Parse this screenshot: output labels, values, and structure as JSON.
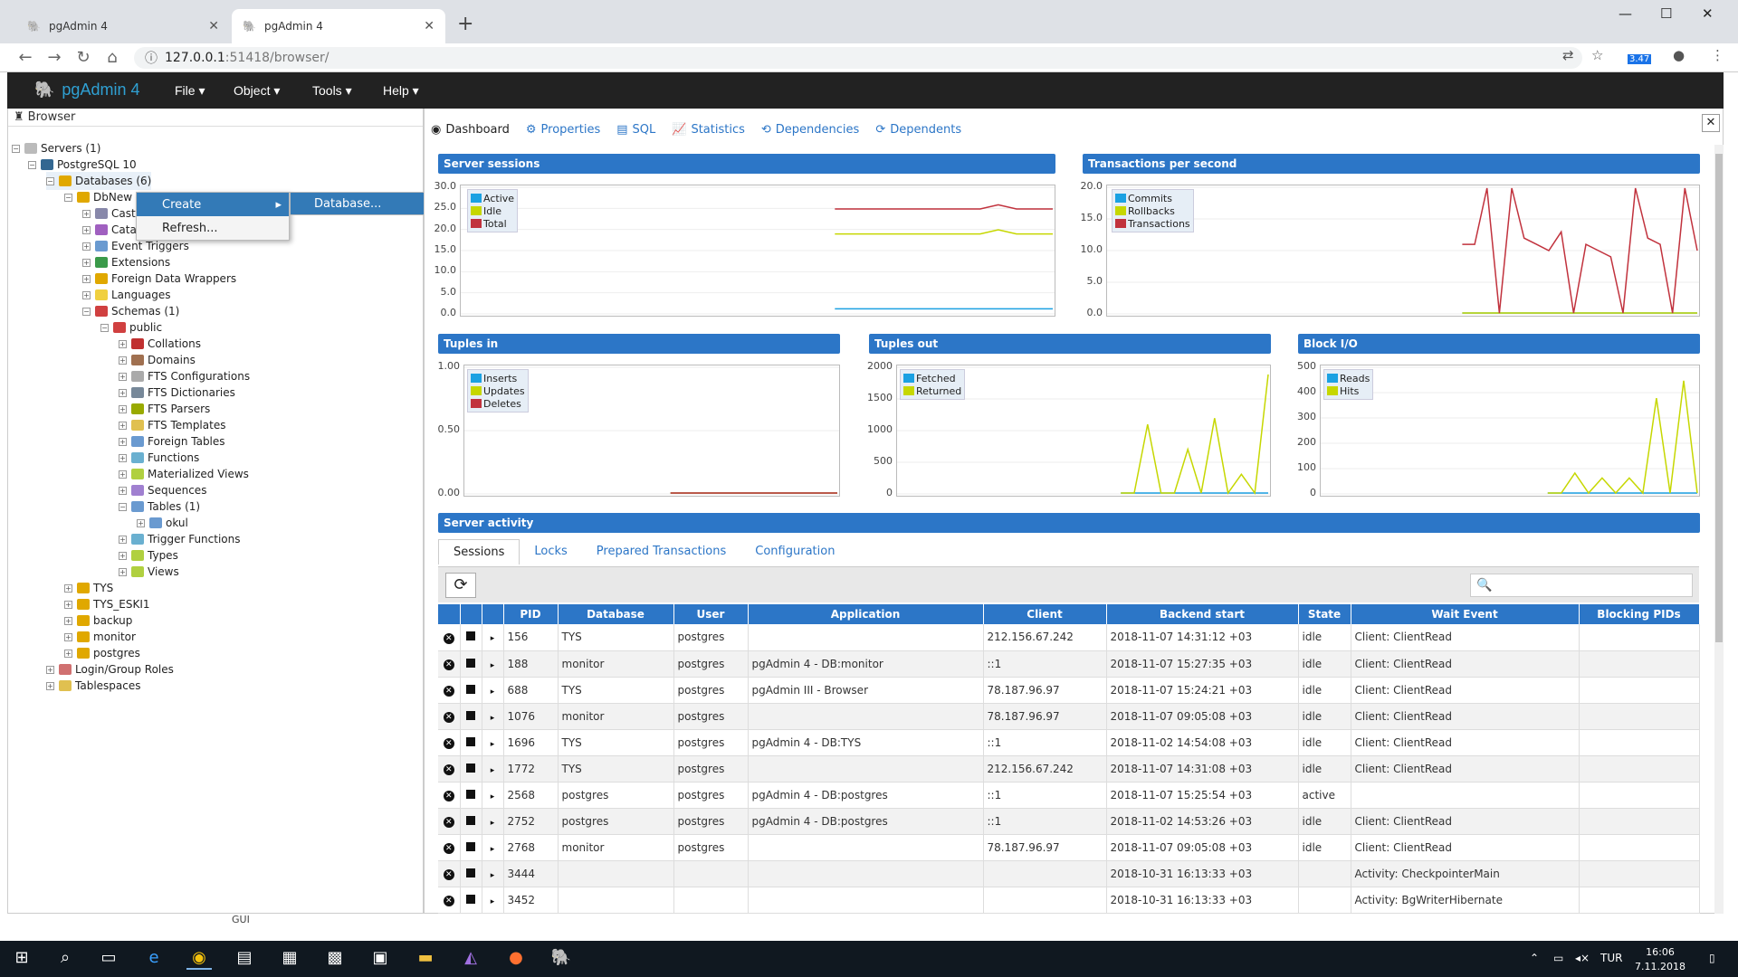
{
  "browser": {
    "tabs": [
      {
        "title": "pgAdmin 4",
        "favicon": "elephant-icon"
      },
      {
        "title": "pgAdmin 4",
        "favicon": "elephant-icon"
      }
    ],
    "url_host": "127.0.0.1",
    "url_rest": ":51418/browser/",
    "ext_badge": "3.47"
  },
  "app": {
    "brand": "pgAdmin 4",
    "menus": [
      "File",
      "Object",
      "Tools",
      "Help"
    ]
  },
  "browser_panel": {
    "title": "Browser",
    "tree": [
      {
        "label": "Servers (1)"
      },
      {
        "label": "PostgreSQL 10"
      },
      {
        "label": "Databases (6)"
      },
      {
        "label": "DbNew"
      },
      {
        "label": "Cast"
      },
      {
        "label": "Catalogs"
      },
      {
        "label": "Event Triggers"
      },
      {
        "label": "Extensions"
      },
      {
        "label": "Foreign Data Wrappers"
      },
      {
        "label": "Languages"
      },
      {
        "label": "Schemas (1)"
      },
      {
        "label": "public"
      },
      {
        "label": "Collations"
      },
      {
        "label": "Domains"
      },
      {
        "label": "FTS Configurations"
      },
      {
        "label": "FTS Dictionaries"
      },
      {
        "label": "FTS Parsers"
      },
      {
        "label": "FTS Templates"
      },
      {
        "label": "Foreign Tables"
      },
      {
        "label": "Functions"
      },
      {
        "label": "Materialized Views"
      },
      {
        "label": "Sequences"
      },
      {
        "label": "Tables (1)"
      },
      {
        "label": "okul"
      },
      {
        "label": "Trigger Functions"
      },
      {
        "label": "Types"
      },
      {
        "label": "Views"
      },
      {
        "label": "TYS"
      },
      {
        "label": "TYS_ESKI1"
      },
      {
        "label": "backup"
      },
      {
        "label": "monitor"
      },
      {
        "label": "postgres"
      },
      {
        "label": "Login/Group Roles"
      },
      {
        "label": "Tablespaces"
      }
    ]
  },
  "context_menu": {
    "create": "Create",
    "refresh": "Refresh...",
    "submenu_database": "Database..."
  },
  "right_tabs": [
    "Dashboard",
    "Properties",
    "SQL",
    "Statistics",
    "Dependencies",
    "Dependents"
  ],
  "charts": {
    "server_sessions": {
      "title": "Server sessions",
      "yticks": [
        "30.0",
        "25.0",
        "20.0",
        "15.0",
        "10.0",
        "5.0",
        "0.0"
      ],
      "legend": [
        "Active",
        "Idle",
        "Total"
      ]
    },
    "tps": {
      "title": "Transactions per second",
      "yticks": [
        "20.0",
        "15.0",
        "10.0",
        "5.0",
        "0.0"
      ],
      "legend": [
        "Commits",
        "Rollbacks",
        "Transactions"
      ]
    },
    "tuples_in": {
      "title": "Tuples in",
      "yticks": [
        "1.00",
        "0.50",
        "0.00"
      ],
      "legend": [
        "Inserts",
        "Updates",
        "Deletes"
      ]
    },
    "tuples_out": {
      "title": "Tuples out",
      "yticks": [
        "2000",
        "1500",
        "1000",
        "500",
        "0"
      ],
      "legend": [
        "Fetched",
        "Returned"
      ]
    },
    "block_io": {
      "title": "Block I/O",
      "yticks": [
        "500",
        "400",
        "300",
        "200",
        "100",
        "0"
      ],
      "legend": [
        "Reads",
        "Hits"
      ]
    }
  },
  "chart_data": [
    {
      "type": "line",
      "title": "Server sessions",
      "ylim": [
        0,
        30
      ],
      "series": [
        {
          "name": "Active",
          "values": [
            1,
            1,
            1,
            1,
            1,
            1,
            1,
            1,
            1,
            1,
            1,
            1,
            1
          ]
        },
        {
          "name": "Idle",
          "values": [
            19,
            19,
            19,
            19,
            19,
            19,
            19,
            19,
            19,
            20,
            19,
            19,
            19
          ]
        },
        {
          "name": "Total",
          "values": [
            25,
            25,
            25,
            25,
            25,
            25,
            25,
            25,
            25,
            26,
            25,
            25,
            25
          ]
        }
      ]
    },
    {
      "type": "line",
      "title": "Transactions per second",
      "ylim": [
        0,
        20
      ],
      "series": [
        {
          "name": "Commits",
          "values": [
            0,
            0,
            0,
            0,
            0,
            0,
            0,
            0,
            0,
            0,
            0,
            0,
            0,
            0,
            0,
            0,
            0,
            0,
            0,
            0
          ]
        },
        {
          "name": "Rollbacks",
          "values": [
            0,
            0,
            0,
            0,
            0,
            0,
            0,
            0,
            0,
            0,
            0,
            0,
            0,
            0,
            0,
            0,
            0,
            0,
            0,
            0
          ]
        },
        {
          "name": "Transactions",
          "values": [
            11,
            11,
            20,
            0,
            20,
            12,
            11,
            10,
            13,
            0,
            11,
            10,
            9,
            0,
            20,
            12,
            11,
            0,
            20,
            10
          ]
        }
      ]
    },
    {
      "type": "line",
      "title": "Tuples in",
      "ylim": [
        0,
        1
      ],
      "series": [
        {
          "name": "Inserts",
          "values": [
            0,
            0,
            0,
            0
          ]
        },
        {
          "name": "Updates",
          "values": [
            0,
            0,
            0,
            0
          ]
        },
        {
          "name": "Deletes",
          "values": [
            0,
            0,
            0,
            0
          ]
        }
      ]
    },
    {
      "type": "line",
      "title": "Tuples out",
      "ylim": [
        0,
        2000
      ],
      "series": [
        {
          "name": "Fetched",
          "values": [
            0,
            0,
            0,
            0,
            0,
            0,
            0,
            0,
            0,
            0,
            0,
            0
          ]
        },
        {
          "name": "Returned",
          "values": [
            0,
            0,
            1100,
            0,
            0,
            700,
            0,
            1200,
            0,
            300,
            0,
            1900
          ]
        }
      ]
    },
    {
      "type": "line",
      "title": "Block I/O",
      "ylim": [
        0,
        500
      ],
      "series": [
        {
          "name": "Reads",
          "values": [
            0,
            0,
            0,
            0,
            0,
            0,
            0,
            0,
            0,
            0,
            0,
            0
          ]
        },
        {
          "name": "Hits",
          "values": [
            0,
            0,
            80,
            0,
            60,
            0,
            60,
            0,
            380,
            0,
            450,
            0
          ]
        }
      ]
    }
  ],
  "activity": {
    "title": "Server activity",
    "tabs": [
      "Sessions",
      "Locks",
      "Prepared Transactions",
      "Configuration"
    ],
    "columns": [
      "",
      "",
      "",
      "PID",
      "Database",
      "User",
      "Application",
      "Client",
      "Backend start",
      "State",
      "Wait Event",
      "Blocking PIDs"
    ],
    "rows": [
      [
        "156",
        "TYS",
        "postgres",
        "",
        "212.156.67.242",
        "2018-11-07 14:31:12 +03",
        "idle",
        "Client: ClientRead",
        ""
      ],
      [
        "188",
        "monitor",
        "postgres",
        "pgAdmin 4 - DB:monitor",
        "::1",
        "2018-11-07 15:27:35 +03",
        "idle",
        "Client: ClientRead",
        ""
      ],
      [
        "688",
        "TYS",
        "postgres",
        "pgAdmin III - Browser",
        "78.187.96.97",
        "2018-11-07 15:24:21 +03",
        "idle",
        "Client: ClientRead",
        ""
      ],
      [
        "1076",
        "monitor",
        "postgres",
        "",
        "78.187.96.97",
        "2018-11-07 09:05:08 +03",
        "idle",
        "Client: ClientRead",
        ""
      ],
      [
        "1696",
        "TYS",
        "postgres",
        "pgAdmin 4 - DB:TYS",
        "::1",
        "2018-11-02 14:54:08 +03",
        "idle",
        "Client: ClientRead",
        ""
      ],
      [
        "1772",
        "TYS",
        "postgres",
        "",
        "212.156.67.242",
        "2018-11-07 14:31:08 +03",
        "idle",
        "Client: ClientRead",
        ""
      ],
      [
        "2568",
        "postgres",
        "postgres",
        "pgAdmin 4 - DB:postgres",
        "::1",
        "2018-11-07 15:25:54 +03",
        "active",
        "",
        ""
      ],
      [
        "2752",
        "postgres",
        "postgres",
        "pgAdmin 4 - DB:postgres",
        "::1",
        "2018-11-02 14:53:26 +03",
        "idle",
        "Client: ClientRead",
        ""
      ],
      [
        "2768",
        "monitor",
        "postgres",
        "",
        "78.187.96.97",
        "2018-11-07 09:05:08 +03",
        "idle",
        "Client: ClientRead",
        ""
      ],
      [
        "3444",
        "",
        "",
        "",
        "",
        "2018-10-31 16:13:33 +03",
        "",
        "Activity: CheckpointerMain",
        ""
      ],
      [
        "3452",
        "",
        "",
        "",
        "",
        "2018-10-31 16:13:33 +03",
        "",
        "Activity: BgWriterHibernate",
        ""
      ]
    ]
  },
  "taskbar": {
    "gui_label": "GUI",
    "time": "16:06",
    "date": "7.11.2018",
    "lang": "TUR"
  },
  "colors": {
    "accent": "#2c76c7",
    "series_blue": "#1ba1e2",
    "series_green": "#c6d700",
    "series_red": "#c1323d"
  }
}
